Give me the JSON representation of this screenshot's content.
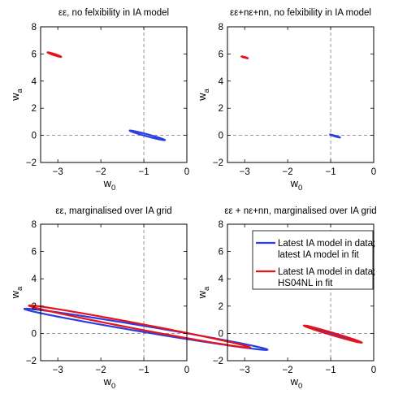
{
  "figure": {
    "panels": [
      {
        "title": "εε, no felxibility in IA model"
      },
      {
        "title": "εε+nε+nn, no felxibility in IA model"
      },
      {
        "title": "εε, marginalised over IA grid"
      },
      {
        "title": "εε + nε+nn, marginalised over IA grid"
      }
    ],
    "legend": {
      "entries": [
        {
          "line1": "Latest IA model in data;",
          "line2": "latest IA model in fit",
          "color": "#2a3fe0"
        },
        {
          "line1": "Latest IA model in data;",
          "line2": "HS04NL in fit",
          "color": "#e8121c"
        }
      ]
    },
    "axis_labels": {
      "x_main": "w",
      "x_sub": "0",
      "y_main": "w",
      "y_sub": "a"
    }
  },
  "chart_data": [
    {
      "type": "line",
      "title": "εε, no felxibility in IA model",
      "xlabel": "w_0",
      "ylabel": "w_a",
      "xlim": [
        -3.4,
        0
      ],
      "ylim": [
        -2,
        8
      ],
      "xticks": [
        -3,
        -2,
        -1,
        0
      ],
      "yticks": [
        -2,
        0,
        2,
        4,
        6,
        8
      ],
      "reference_lines": {
        "x": -1,
        "y": 0
      },
      "series": [
        {
          "color": "#2a3fe0",
          "ellipse": {
            "cx": -0.92,
            "cy": 0.0,
            "a": 0.54,
            "b": 0.06,
            "angle_deg": -41
          }
        },
        {
          "color": "#e8121c",
          "ellipse": {
            "cx": -3.08,
            "cy": 5.95,
            "a": 0.23,
            "b": 0.035,
            "angle_deg": -47
          }
        }
      ]
    },
    {
      "type": "line",
      "title": "εε+nε+nn, no felxibility in IA model",
      "xlabel": "w_0",
      "ylabel": "w_a",
      "xlim": [
        -3.4,
        0
      ],
      "ylim": [
        -2,
        8
      ],
      "xticks": [
        -3,
        -2,
        -1,
        0
      ],
      "yticks": [
        -2,
        0,
        2,
        4,
        6,
        8
      ],
      "reference_lines": {
        "x": -1,
        "y": 0
      },
      "series": [
        {
          "color": "#2a3fe0",
          "ellipse": {
            "cx": -0.9,
            "cy": -0.05,
            "a": 0.16,
            "b": 0.02,
            "angle_deg": -43
          }
        },
        {
          "color": "#e8121c",
          "ellipse": {
            "cx": -3.0,
            "cy": 5.75,
            "a": 0.1,
            "b": 0.02,
            "angle_deg": -43
          }
        }
      ]
    },
    {
      "type": "line",
      "title": "εε, marginalised over IA grid",
      "xlabel": "w_0",
      "ylabel": "w_a",
      "xlim": [
        -3.4,
        0
      ],
      "ylim": [
        -2,
        8
      ],
      "xticks": [
        -3,
        -2,
        -1,
        0
      ],
      "yticks": [
        -2,
        0,
        2,
        4,
        6,
        8
      ],
      "reference_lines": {
        "x": -1,
        "y": 0
      },
      "series": [
        {
          "color": "#2a3fe0",
          "ellipse": {
            "cx": -0.95,
            "cy": 0.3,
            "a": 3.2,
            "b": 0.2,
            "angle_deg": -28
          }
        },
        {
          "color": "#e8121c",
          "ellipse": {
            "cx": -1.1,
            "cy": 0.5,
            "a": 3.0,
            "b": 0.18,
            "angle_deg": -31
          }
        }
      ]
    },
    {
      "type": "line",
      "title": "εε + nε+nn, marginalised over IA grid",
      "xlabel": "w_0",
      "ylabel": "w_a",
      "xlim": [
        -3.4,
        0
      ],
      "ylim": [
        -2,
        8
      ],
      "xticks": [
        -3,
        -2,
        -1,
        0
      ],
      "yticks": [
        -2,
        0,
        2,
        4,
        6,
        8
      ],
      "reference_lines": {
        "x": -1,
        "y": 0
      },
      "legend": "top-right",
      "series": [
        {
          "name": "Latest IA model in data; latest IA model in fit",
          "color": "#2a3fe0",
          "ellipse": {
            "cx": -0.95,
            "cy": -0.05,
            "a": 0.85,
            "b": 0.04,
            "angle_deg": -45
          }
        },
        {
          "name": "Latest IA model in data; HS04NL in fit",
          "color": "#e8121c",
          "ellipse": {
            "cx": -0.95,
            "cy": -0.05,
            "a": 0.92,
            "b": 0.07,
            "angle_deg": -43
          }
        }
      ]
    }
  ]
}
